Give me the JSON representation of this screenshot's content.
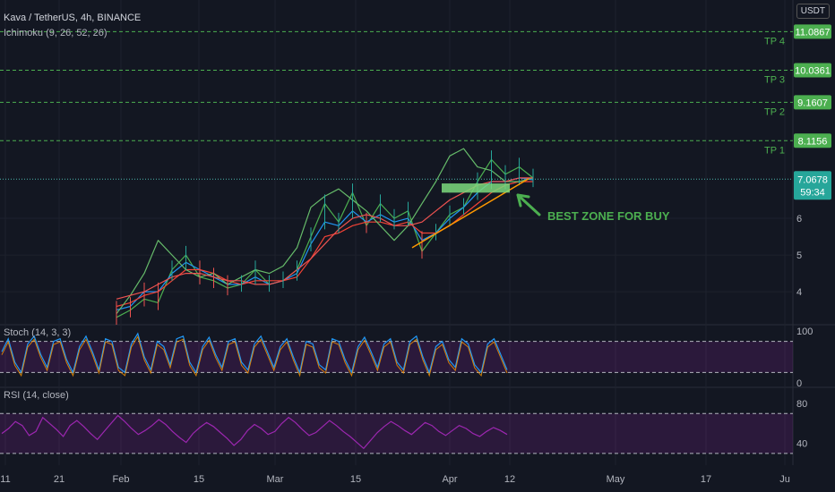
{
  "header": {
    "symbol_line": "Kava / TetherUS, 4h, BINANCE",
    "indicator": "Ichimoku (9, 26, 52, 26)",
    "currency": "USDT"
  },
  "colors": {
    "background": "#131722",
    "tp_line": "#4caf50",
    "price_badge": "#26a69a",
    "tenkan": "#2196f3",
    "kijun": "#f44336",
    "chikou": "#4caf50",
    "span_a": "#66bb6a",
    "span_b": "#ef5350",
    "trend_line": "#ff9800",
    "buy_zone": "#7cd97c",
    "oscillator": "#9c27b0"
  },
  "chart_data": [
    {
      "type": "line",
      "panel": "price",
      "y_ticks": [
        4,
        5,
        6
      ],
      "ylim": [
        3.1,
        11.95
      ],
      "x_ticks": [
        "11",
        "21",
        "Feb",
        "15",
        "Mar",
        "15",
        "Apr",
        "12",
        "May",
        "17",
        "Ju"
      ],
      "levels": [
        {
          "label": "TP 4",
          "value": 11.0867
        },
        {
          "label": "TP 3",
          "value": 10.0361
        },
        {
          "label": "TP 2",
          "value": 9.1607
        },
        {
          "label": "TP 1",
          "value": 8.1156
        }
      ],
      "last_price": 7.0678,
      "countdown": "59:34",
      "annotation": "BEST ZONE FOR BUY",
      "buy_zone": [
        6.7,
        6.95
      ],
      "series": [
        {
          "values": [
            3.3,
            3.5,
            3.8,
            3.7,
            4.6,
            5.0,
            4.4,
            4.3,
            4.1,
            4.2,
            4.6,
            4.2,
            4.3,
            4.6,
            5.5,
            6.4,
            5.9,
            6.7,
            5.8,
            6.4,
            6.0,
            6.2,
            5.1,
            5.6,
            6.1,
            6.3,
            7.0,
            7.6,
            7.2,
            7.4,
            7.1
          ]
        },
        {
          "values": [
            3.5,
            3.6,
            4.0,
            4.0,
            4.5,
            4.8,
            4.6,
            4.4,
            4.2,
            4.2,
            4.4,
            4.2,
            4.3,
            4.5,
            5.3,
            5.9,
            5.8,
            6.2,
            5.9,
            6.1,
            5.9,
            6.0,
            5.4,
            5.6,
            6.0,
            6.3,
            6.7,
            7.0,
            7.0,
            7.1,
            7.05
          ]
        },
        {
          "values": [
            3.6,
            3.7,
            3.9,
            4.0,
            4.3,
            4.6,
            4.6,
            4.5,
            4.3,
            4.2,
            4.3,
            4.3,
            4.3,
            4.4,
            4.9,
            5.5,
            5.6,
            5.8,
            5.9,
            5.9,
            5.8,
            5.9,
            5.6,
            5.6,
            5.8,
            6.1,
            6.4,
            6.7,
            6.9,
            7.0,
            7.0
          ]
        },
        {
          "values": [
            3.4,
            3.9,
            4.5,
            5.4,
            5.0,
            4.6,
            4.4,
            4.5,
            4.2,
            4.4,
            4.6,
            4.5,
            4.7,
            5.2,
            6.3,
            6.6,
            6.8,
            6.5,
            6.2,
            5.8,
            5.4,
            5.8,
            6.4,
            7.0,
            7.7,
            7.9,
            7.4,
            7.3,
            7.0,
            7.0,
            7.1
          ]
        },
        {
          "values": [
            3.8,
            3.9,
            4.0,
            4.2,
            4.4,
            4.5,
            4.5,
            4.4,
            4.3,
            4.3,
            4.2,
            4.2,
            4.3,
            4.6,
            4.9,
            5.3,
            5.7,
            6.0,
            6.1,
            6.0,
            5.8,
            5.8,
            5.9,
            6.2,
            6.5,
            6.7,
            6.9,
            7.0,
            7.0,
            7.1,
            7.1
          ]
        }
      ],
      "trend_line": [
        [
          5.2,
          6.9
        ],
        [
          7.1,
          7.08
        ]
      ]
    },
    {
      "type": "line",
      "panel": "stoch",
      "title": "Stoch (14, 3, 3)",
      "y_ticks": [
        100,
        0
      ],
      "levels": [
        80,
        20
      ],
      "ylim": [
        0,
        100
      ],
      "series": [
        {
          "values": [
            60,
            85,
            40,
            20,
            75,
            90,
            55,
            30,
            80,
            85,
            45,
            20,
            70,
            90,
            60,
            25,
            85,
            80,
            30,
            20,
            75,
            95,
            50,
            25,
            80,
            70,
            35,
            85,
            90,
            40,
            20,
            70,
            88,
            55,
            30,
            80,
            85,
            40,
            25,
            75,
            90,
            60,
            30,
            70,
            85,
            50,
            20,
            80,
            75,
            35,
            25,
            85,
            80,
            45,
            20,
            70,
            88,
            60,
            30,
            75,
            85,
            40,
            25,
            80,
            90,
            50,
            20,
            70,
            80,
            45,
            30,
            85,
            75,
            35,
            20,
            75,
            85,
            55,
            25
          ]
        }
      ]
    },
    {
      "type": "line",
      "panel": "rsi",
      "title": "RSI (14, close)",
      "y_ticks": [
        80,
        40
      ],
      "levels": [
        70,
        30
      ],
      "ylim": [
        20,
        90
      ],
      "series": [
        {
          "values": [
            50,
            55,
            62,
            58,
            48,
            52,
            66,
            60,
            54,
            47,
            58,
            63,
            57,
            50,
            44,
            52,
            60,
            68,
            62,
            55,
            49,
            53,
            58,
            64,
            59,
            52,
            46,
            41,
            50,
            56,
            61,
            57,
            51,
            45,
            38,
            44,
            53,
            59,
            55,
            49,
            52,
            60,
            66,
            61,
            54,
            48,
            51,
            57,
            63,
            58,
            52,
            47,
            41,
            35,
            43,
            51,
            57,
            62,
            58,
            53,
            49,
            55,
            61,
            58,
            52,
            48,
            53,
            58,
            55,
            50,
            47,
            52,
            56,
            53,
            49
          ]
        }
      ]
    }
  ]
}
